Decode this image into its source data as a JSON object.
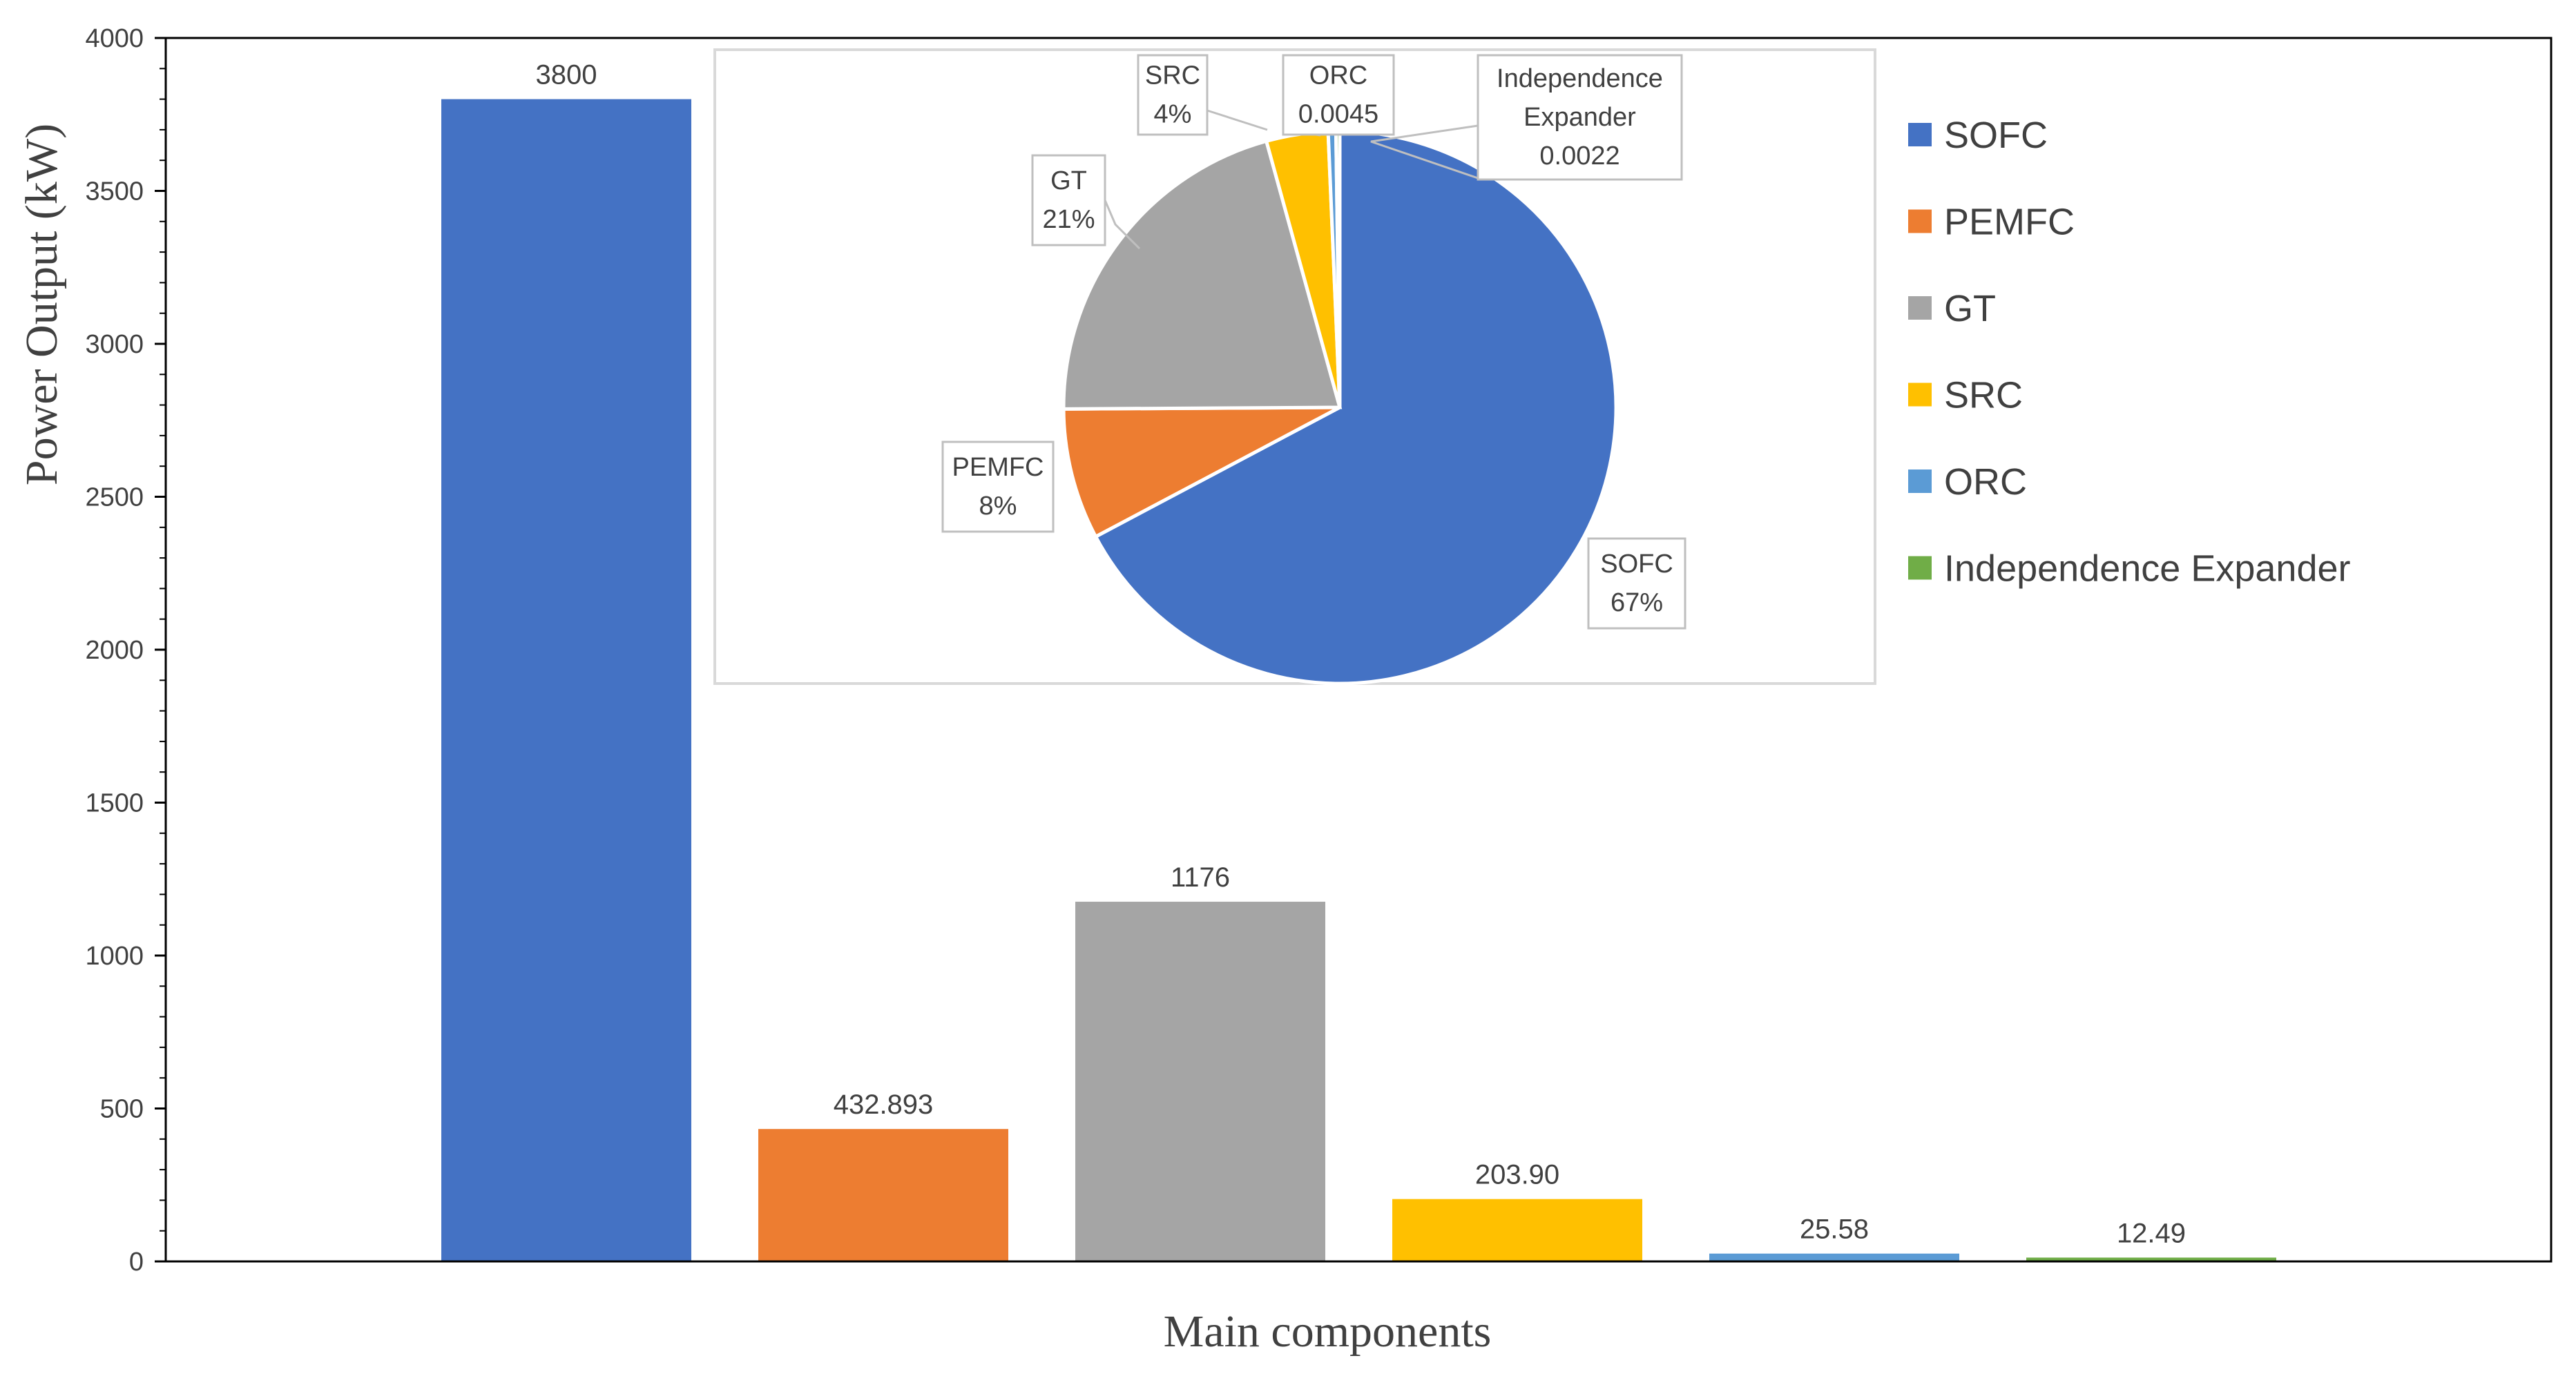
{
  "chart_data": [
    {
      "type": "bar",
      "categories": [
        "SOFC",
        "PEMFC",
        "GT",
        "SRC",
        "ORC",
        "Independence Expander"
      ],
      "values": [
        3800,
        432.893,
        1176,
        203.9,
        25.58,
        12.49
      ],
      "value_labels": [
        "3800",
        "432.893",
        "1176",
        "203.90",
        "25.58",
        "12.49"
      ],
      "colors": [
        "#4472C4",
        "#ED7D31",
        "#A5A5A5",
        "#FFC000",
        "#5B9BD5",
        "#70AD47"
      ],
      "xlabel": "Main components",
      "ylabel": "Power Output  (kW)",
      "ylim": [
        0,
        4000
      ],
      "yticks": [
        0,
        500,
        1000,
        1500,
        2000,
        2500,
        3000,
        3500,
        4000
      ],
      "legend": {
        "placement": "right",
        "entries": [
          "SOFC",
          "PEMFC",
          "GT",
          "SRC",
          "ORC",
          "Independence Expander"
        ]
      }
    },
    {
      "type": "pie",
      "placement": "inset",
      "slices": [
        {
          "name": "SOFC",
          "value": 3800,
          "label_lines": [
            "SOFC",
            "67%"
          ]
        },
        {
          "name": "PEMFC",
          "value": 432.893,
          "label_lines": [
            "PEMFC",
            "8%"
          ]
        },
        {
          "name": "GT",
          "value": 1176,
          "label_lines": [
            "GT",
            "21%"
          ]
        },
        {
          "name": "SRC",
          "value": 203.9,
          "label_lines": [
            "SRC",
            "4%"
          ]
        },
        {
          "name": "ORC",
          "value": 25.58,
          "label_lines": [
            "ORC",
            "0.0045"
          ]
        },
        {
          "name": "Independence Expander",
          "value": 12.49,
          "label_lines": [
            "Independence",
            "Expander",
            "0.0022"
          ]
        }
      ]
    }
  ]
}
